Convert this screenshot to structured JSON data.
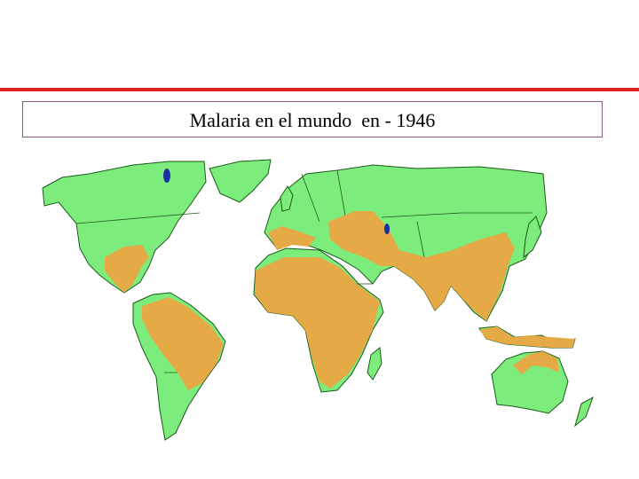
{
  "title": "Malaria en el mundo  en - 1946"
}
